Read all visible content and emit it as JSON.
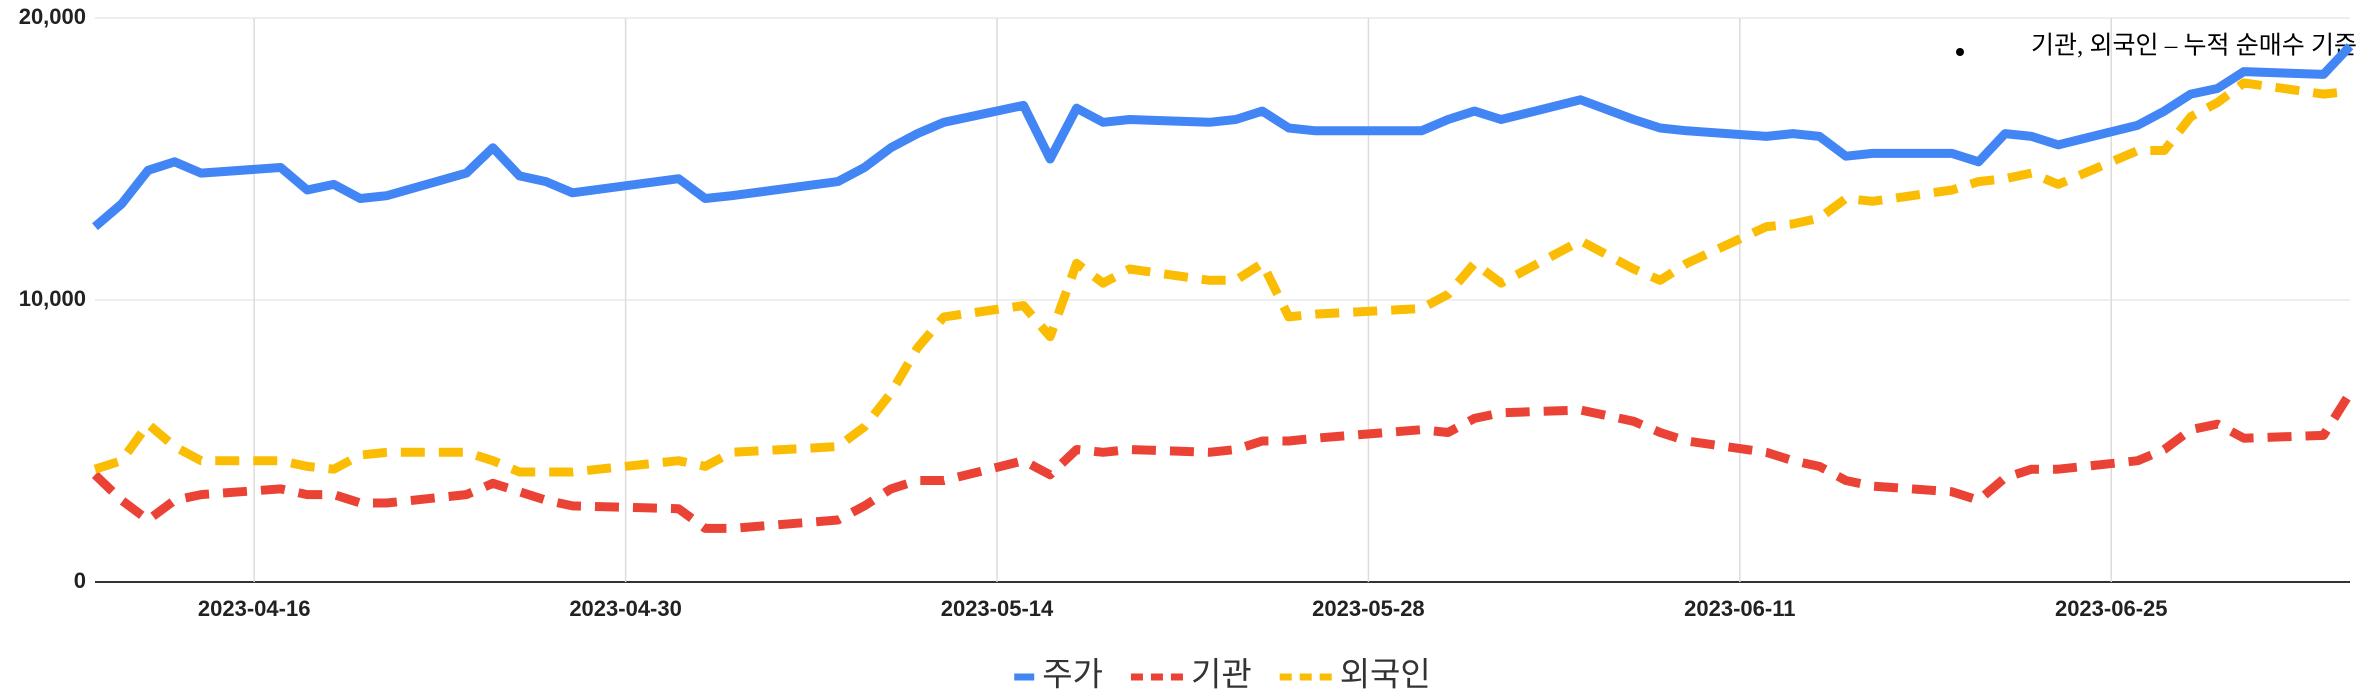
{
  "chart_data": {
    "type": "line",
    "annotation": "기관, 외국인 – 누적 순매수 기준",
    "x": [
      "2023-04-10",
      "2023-04-11",
      "2023-04-12",
      "2023-04-13",
      "2023-04-14",
      "2023-04-17",
      "2023-04-18",
      "2023-04-19",
      "2023-04-20",
      "2023-04-21",
      "2023-04-24",
      "2023-04-25",
      "2023-04-26",
      "2023-04-27",
      "2023-04-28",
      "2023-05-02",
      "2023-05-03",
      "2023-05-04",
      "2023-05-08",
      "2023-05-09",
      "2023-05-10",
      "2023-05-11",
      "2023-05-12",
      "2023-05-15",
      "2023-05-16",
      "2023-05-17",
      "2023-05-18",
      "2023-05-19",
      "2023-05-22",
      "2023-05-23",
      "2023-05-24",
      "2023-05-25",
      "2023-05-26",
      "2023-05-30",
      "2023-05-31",
      "2023-06-01",
      "2023-06-02",
      "2023-06-05",
      "2023-06-07",
      "2023-06-08",
      "2023-06-09",
      "2023-06-12",
      "2023-06-13",
      "2023-06-14",
      "2023-06-15",
      "2023-06-16",
      "2023-06-19",
      "2023-06-20",
      "2023-06-21",
      "2023-06-22",
      "2023-06-23",
      "2023-06-26",
      "2023-06-27",
      "2023-06-28",
      "2023-06-29",
      "2023-06-30",
      "2023-07-03",
      "2023-07-04"
    ],
    "series": [
      {
        "name": "주가",
        "color": "#4285f4",
        "line_style": "solid",
        "values": [
          12600,
          13400,
          14600,
          14900,
          14500,
          14700,
          13900,
          14100,
          13600,
          13700,
          14500,
          15400,
          14400,
          14200,
          13800,
          14300,
          13600,
          13700,
          14200,
          14700,
          15400,
          15900,
          16300,
          16900,
          15000,
          16800,
          16300,
          16400,
          16300,
          16400,
          16700,
          16100,
          16000,
          16000,
          16400,
          16700,
          16400,
          17100,
          16400,
          16100,
          16000,
          15800,
          15900,
          15800,
          15100,
          15200,
          15200,
          14900,
          15900,
          15800,
          15500,
          16200,
          16700,
          17300,
          17500,
          18100,
          18000,
          19000
        ]
      },
      {
        "name": "기관",
        "color": "#ea4335",
        "line_style": "dashed",
        "values": [
          3800,
          2900,
          2200,
          2900,
          3100,
          3300,
          3100,
          3100,
          2800,
          2800,
          3100,
          3500,
          3200,
          2900,
          2700,
          2600,
          1900,
          1900,
          2200,
          2700,
          3300,
          3600,
          3600,
          4300,
          3800,
          4700,
          4600,
          4700,
          4600,
          4700,
          5000,
          5000,
          5100,
          5400,
          5300,
          5800,
          6000,
          6100,
          5700,
          5300,
          5000,
          4600,
          4300,
          4100,
          3600,
          3400,
          3200,
          2900,
          3700,
          4000,
          4000,
          4300,
          4700,
          5400,
          5600,
          5100,
          5200,
          6700
        ]
      },
      {
        "name": "외국인",
        "color": "#fbbc04",
        "line_style": "dashed",
        "values": [
          4000,
          4300,
          5600,
          4800,
          4300,
          4300,
          4100,
          4000,
          4500,
          4600,
          4600,
          4300,
          3900,
          3900,
          3900,
          4300,
          4100,
          4600,
          4800,
          5500,
          6700,
          8300,
          9400,
          9800,
          8700,
          11300,
          10600,
          11100,
          10700,
          10700,
          11300,
          9400,
          9500,
          9700,
          10200,
          11300,
          10600,
          12100,
          11100,
          10700,
          11300,
          12600,
          12700,
          12900,
          13600,
          13500,
          13900,
          14200,
          14300,
          14500,
          14100,
          15300,
          15300,
          16500,
          17000,
          17700,
          17300,
          17400
        ]
      }
    ],
    "xlim": [
      "2023-04-10",
      "2023-07-04"
    ],
    "xticks": [
      "2023-04-16",
      "2023-04-30",
      "2023-05-14",
      "2023-05-28",
      "2023-06-11",
      "2023-06-25"
    ],
    "ylim": [
      0,
      20000
    ],
    "yticks": [
      0,
      {
        "value": 10000,
        "label": "10,000"
      },
      {
        "value": 20000,
        "label": "20,000"
      }
    ],
    "grid": true,
    "legend": "bottom"
  }
}
